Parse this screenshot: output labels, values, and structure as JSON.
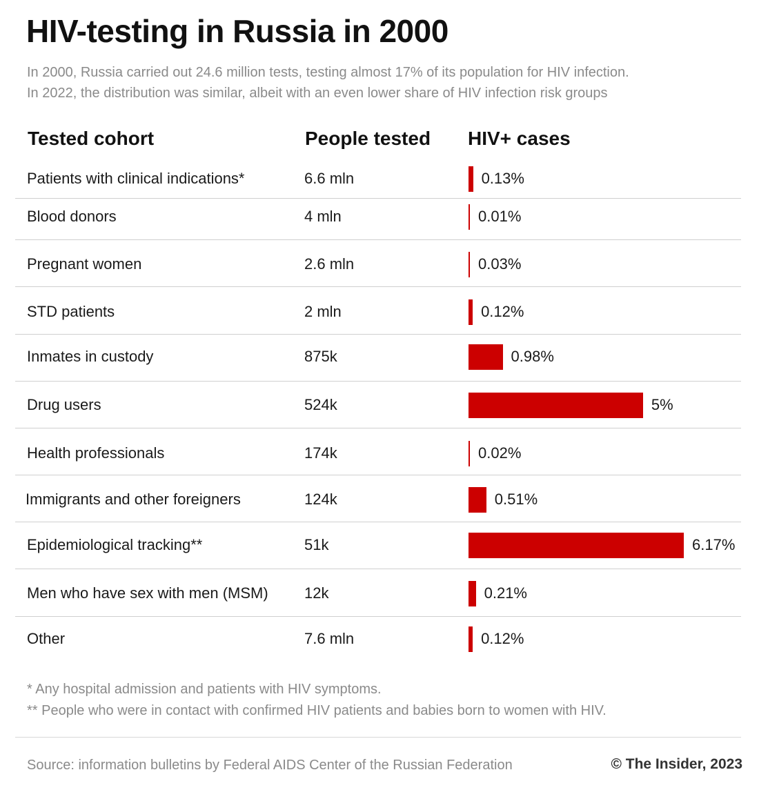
{
  "title": "HIV-testing in Russia in 2000",
  "subtitle_line1": "In 2000, Russia carried out 24.6 million tests, testing almost 17% of its population for HIV infection.",
  "subtitle_line2": "In 2022, the distribution was similar, albeit with an even lower share of HIV infection risk groups",
  "colors": {
    "bar": "#cc0000",
    "text": "#111111",
    "muted": "#8a8a8a"
  },
  "chart_data": {
    "type": "bar",
    "columns": [
      "Tested cohort",
      "People tested",
      "HIV+ cases"
    ],
    "categories": [
      "Patients with clinical indications*",
      "Blood donors",
      "Pregnant women",
      "STD patients",
      "Inmates in custody",
      "Drug users",
      "Health professionals",
      "Immigrants and other foreigners",
      "Epidemiological tracking**",
      "Men who have sex with men (MSM)",
      "Other"
    ],
    "people_tested": [
      "6.6 mln",
      "4 mln",
      "2.6 mln",
      "2 mln",
      "875k",
      "524k",
      "174k",
      "124k",
      "51k",
      "12k",
      "7.6 mln"
    ],
    "values": [
      0.13,
      0.01,
      0.03,
      0.12,
      0.98,
      5,
      0.02,
      0.51,
      6.17,
      0.21,
      0.12
    ],
    "value_labels": [
      "0.13%",
      "0.01%",
      "0.03%",
      "0.12%",
      "0.98%",
      "5%",
      "0.02%",
      "0.51%",
      "6.17%",
      "0.21%",
      "0.12%"
    ],
    "xlim": [
      0,
      6.17
    ]
  },
  "footnotes": [
    "*   Any hospital admission and patients with HIV symptoms.",
    "** People who were in contact with confirmed HIV patients and babies born to women with HIV."
  ],
  "source": "Source: information bulletins by Federal AIDS Center of the Russian Federation",
  "credit": "© The Insider, 2023"
}
